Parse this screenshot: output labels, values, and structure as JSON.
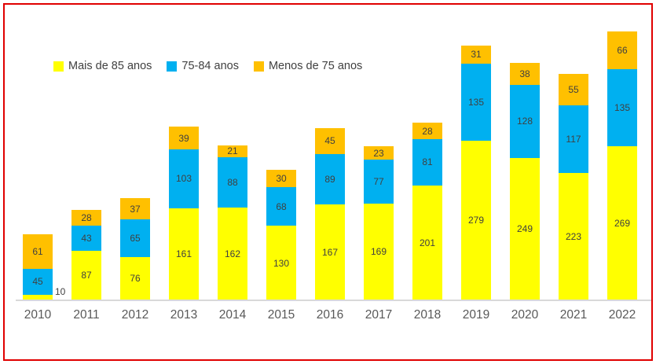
{
  "window": {
    "background": "#FFFFFF",
    "frame_border_color": "#E00000"
  },
  "legend": {
    "position": "top-left",
    "items": [
      {
        "label": "Mais de 85 anos",
        "color": "#FFFF00"
      },
      {
        "label": "75-84 anos",
        "color": "#00B0F0"
      },
      {
        "label": "Menos de 75 anos",
        "color": "#FFC000"
      }
    ]
  },
  "chart_data": {
    "type": "bar",
    "stacked": true,
    "orientation": "vertical",
    "title": "",
    "xlabel": "",
    "ylabel": "",
    "categories": [
      "2010",
      "2011",
      "2012",
      "2013",
      "2014",
      "2015",
      "2016",
      "2017",
      "2018",
      "2019",
      "2020",
      "2021",
      "2022"
    ],
    "series": [
      {
        "name": "Mais de 85 anos",
        "color": "#FFFF00",
        "values": [
          10,
          87,
          76,
          161,
          162,
          130,
          167,
          169,
          201,
          279,
          249,
          223,
          269
        ]
      },
      {
        "name": "75-84 anos",
        "color": "#00B0F0",
        "values": [
          45,
          43,
          65,
          103,
          88,
          68,
          89,
          77,
          81,
          135,
          128,
          117,
          135
        ]
      },
      {
        "name": "Menos de 75 anos",
        "color": "#FFC000",
        "values": [
          61,
          28,
          37,
          39,
          21,
          30,
          45,
          23,
          28,
          31,
          38,
          55,
          66
        ]
      }
    ],
    "ylim": [
      0,
      480
    ],
    "grid": false,
    "y_axis_visible": false,
    "data_labels": true,
    "legend_position": "top-left",
    "data_label_color": "#404040",
    "category_label_color": "#595959",
    "axis_line_color": "#D9D9D9"
  }
}
